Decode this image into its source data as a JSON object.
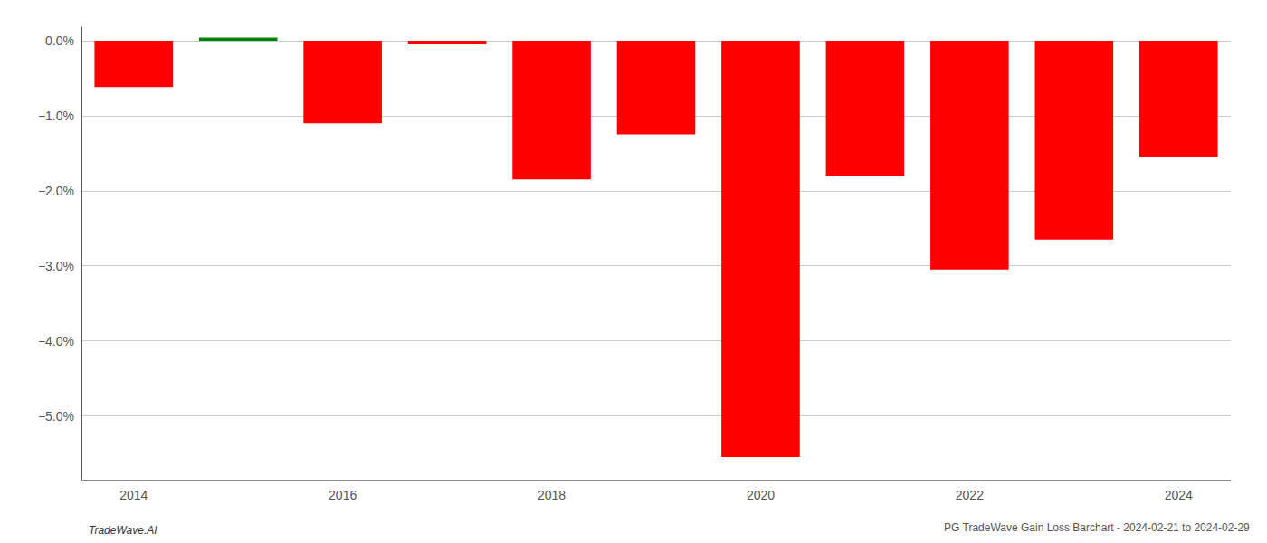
{
  "chart_data": {
    "type": "bar",
    "title": "PG TradeWave Gain Loss Barchart - 2024-02-21 to 2024-02-29",
    "annotations": [
      "TradeWave.AI"
    ],
    "categories": [
      "2014",
      null,
      "2016",
      null,
      "2018",
      null,
      "2020",
      null,
      "2022",
      null,
      "2024"
    ],
    "values": [
      -0.62,
      0.04,
      -1.1,
      -0.05,
      -1.85,
      -1.25,
      -5.55,
      -1.8,
      -3.05,
      -2.65,
      -1.55
    ],
    "colors": [
      "#ff0000",
      "#008000",
      "#ff0000",
      "#ff0000",
      "#ff0000",
      "#ff0000",
      "#ff0000",
      "#ff0000",
      "#ff0000",
      "#ff0000",
      "#ff0000"
    ],
    "ylim": [
      -5.85,
      0.18
    ],
    "yticks": [
      {
        "value": -5,
        "label": "−5.0%"
      },
      {
        "value": -4,
        "label": "−4.0%"
      },
      {
        "value": -3,
        "label": "−3.0%"
      },
      {
        "value": -2,
        "label": "−2.0%"
      },
      {
        "value": -1,
        "label": "−1.0%"
      },
      {
        "value": 0,
        "label": "0.0%"
      }
    ],
    "grid": true
  }
}
